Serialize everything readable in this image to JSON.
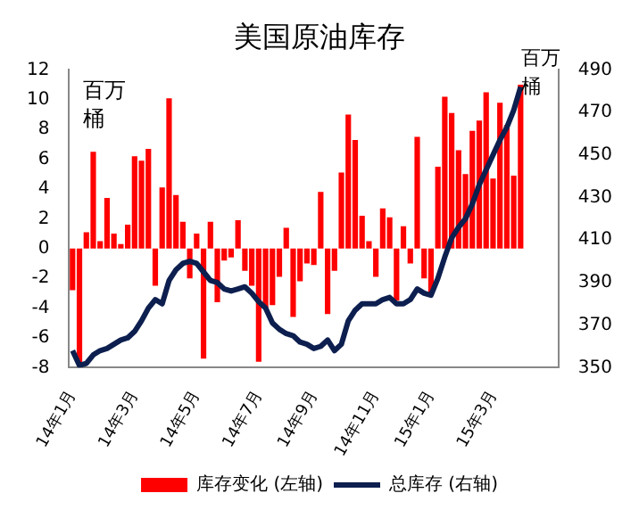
{
  "chart_data": {
    "type": "bar",
    "title": "美国原油库存",
    "categories": [
      "14年1月",
      null,
      null,
      null,
      null,
      null,
      null,
      null,
      null,
      "14年3月",
      null,
      null,
      null,
      null,
      null,
      null,
      null,
      null,
      "14年5月",
      null,
      null,
      null,
      null,
      null,
      null,
      null,
      null,
      "14年7月",
      null,
      null,
      null,
      null,
      null,
      null,
      null,
      "14年9月",
      null,
      null,
      null,
      null,
      null,
      null,
      null,
      null,
      "14年11月",
      null,
      null,
      null,
      null,
      null,
      null,
      null,
      "15年1月",
      null,
      null,
      null,
      null,
      null,
      null,
      null,
      null,
      "15年3月",
      null,
      null,
      null,
      null,
      null,
      null,
      null,
      null,
      null
    ],
    "series": [
      {
        "name": "库存变化 (左轴)",
        "color": "#ff0000",
        "values": [
          -2.8,
          -7.8,
          1.1,
          6.5,
          0.5,
          3.4,
          1.0,
          0.3,
          1.6,
          6.2,
          5.9,
          6.7,
          -2.5,
          4.1,
          10.1,
          3.6,
          1.8,
          -2.0,
          1.0,
          -7.4,
          1.8,
          -3.6,
          -0.8,
          -0.6,
          1.9,
          -1.5,
          -2.5,
          -7.6,
          -4.0,
          -3.8,
          -1.9,
          1.4,
          -4.6,
          -2.2,
          -1.0,
          -1.1,
          3.8,
          -4.4,
          -1.5,
          5.1,
          9.0,
          7.3,
          2.2,
          0.5,
          -1.9,
          2.7,
          2.1,
          -3.5,
          1.5,
          -1.0,
          7.5,
          -2.0,
          -3.1,
          5.5,
          10.2,
          9.1,
          6.6,
          5.0,
          7.9,
          8.6,
          10.5,
          4.7,
          9.8,
          8.3,
          4.9,
          11.0,
          null,
          null,
          null,
          null,
          null
        ]
      },
      {
        "name": "总库存 (右轴)",
        "type": "line",
        "axis": "y2",
        "color": "#0d1f4f",
        "values": [
          358,
          351,
          352,
          356,
          358,
          359,
          361,
          363,
          364,
          367,
          372,
          378,
          382,
          380,
          391,
          396,
          399,
          400,
          399,
          395,
          391,
          390,
          387,
          386,
          387,
          388,
          385,
          381,
          378,
          371,
          368,
          366,
          365,
          362,
          361,
          359,
          360,
          363,
          358,
          361,
          372,
          377,
          380,
          380,
          380,
          382,
          383,
          380,
          380,
          382,
          387,
          385,
          384,
          392,
          402,
          411,
          416,
          420,
          427,
          436,
          443,
          450,
          457,
          463,
          471,
          482,
          null,
          null,
          null,
          null,
          null
        ]
      }
    ],
    "ylim": [
      -8,
      12
    ],
    "yticks": [
      -8,
      -6,
      -4,
      -2,
      0,
      2,
      4,
      6,
      8,
      10,
      12
    ],
    "y2lim": [
      350,
      490
    ],
    "y2ticks": [
      350,
      370,
      390,
      410,
      430,
      450,
      470,
      490
    ],
    "marker": "none",
    "legend": "bottom",
    "annotations": [
      "百万桶",
      "百万桶"
    ]
  }
}
